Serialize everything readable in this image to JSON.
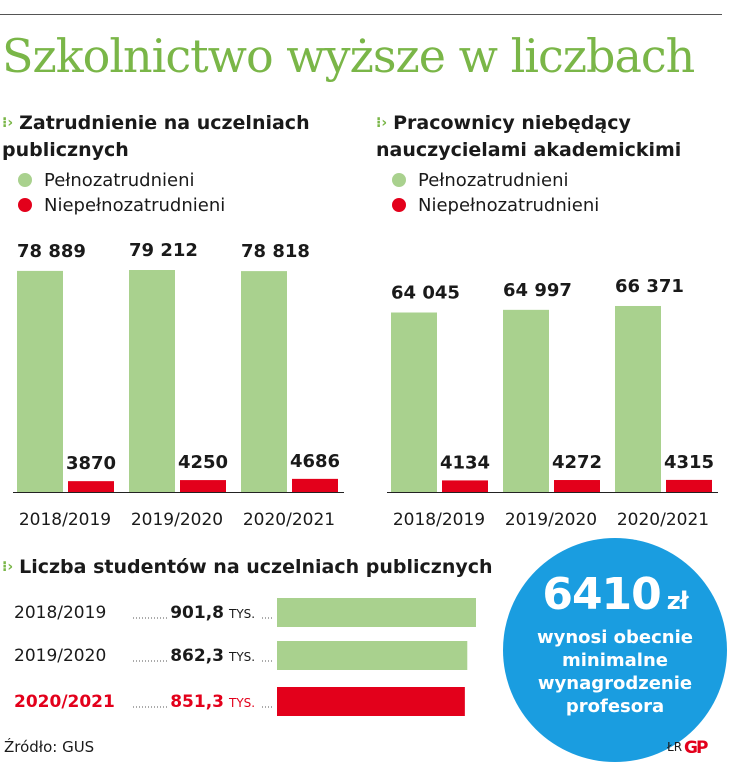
{
  "title": "Szkolnictwo wyższe w liczbach",
  "colors": {
    "green": "#a9d18e",
    "red": "#e3001b",
    "blue": "#1a9de0",
    "title_green": "#7ab648"
  },
  "legend": {
    "full": "Pełnozatrudnieni",
    "part": "Niepełnozatrudnieni"
  },
  "circle": {
    "value": "6410",
    "unit": "zł",
    "text": "wynosi obecnie minimalne wynagrodzenie profesora"
  },
  "footer": {
    "source": "Źródło: GUS",
    "author": "ŁR",
    "logo": "GP"
  },
  "chart_data": [
    {
      "type": "bar",
      "title": "Zatrudnienie na uczelniach publicznych",
      "categories": [
        "2018/2019",
        "2019/2020",
        "2020/2021"
      ],
      "series": [
        {
          "name": "Pełnozatrudnieni",
          "values": [
            78889,
            79212,
            78818
          ],
          "labels": [
            "78 889",
            "79 212",
            "78 818"
          ]
        },
        {
          "name": "Niepełnozatrudnieni",
          "values": [
            3870,
            4250,
            4686
          ],
          "labels": [
            "3870",
            "4250",
            "4686"
          ]
        }
      ],
      "ylim": [
        0,
        79212
      ]
    },
    {
      "type": "bar",
      "title": "Pracownicy niebędący nauczycielami akademickimi",
      "categories": [
        "2018/2019",
        "2019/2020",
        "2020/2021"
      ],
      "series": [
        {
          "name": "Pełnozatrudnieni",
          "values": [
            64045,
            64997,
            66371
          ],
          "labels": [
            "64 045",
            "64 997",
            "66 371"
          ]
        },
        {
          "name": "Niepełnozatrudnieni",
          "values": [
            4134,
            4272,
            4315
          ],
          "labels": [
            "4134",
            "4272",
            "4315"
          ]
        }
      ],
      "ylim": [
        0,
        79212
      ]
    },
    {
      "type": "bar",
      "orientation": "horizontal",
      "title": "Liczba studentów na uczelniach publicznych",
      "unit": "TYS.",
      "categories": [
        "2018/2019",
        "2019/2020",
        "2020/2021"
      ],
      "values": [
        901.8,
        862.3,
        851.3
      ],
      "labels": [
        "901,8",
        "862,3",
        "851,3"
      ],
      "highlight": [
        false,
        false,
        true
      ],
      "xlim": [
        0,
        901.8
      ]
    }
  ]
}
